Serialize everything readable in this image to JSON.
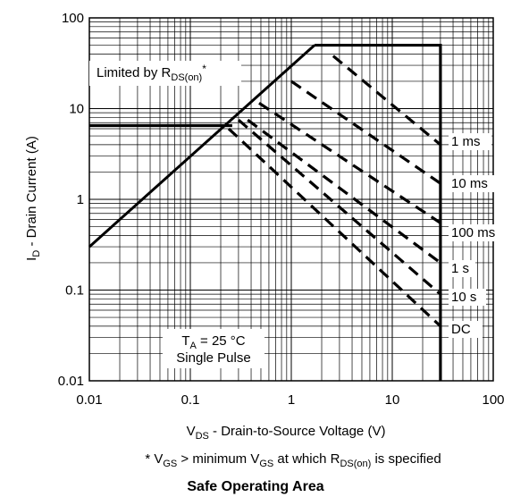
{
  "chart_data": {
    "type": "line",
    "title": "Safe Operating Area",
    "xscale": "log",
    "yscale": "log",
    "xlim": [
      0.01,
      100
    ],
    "ylim": [
      0.01,
      100
    ],
    "grid": "on",
    "x_tick_labels": [
      "0.01",
      "0.1",
      "1",
      "10",
      "100"
    ],
    "y_tick_labels": [
      "100",
      "10",
      "1",
      "0.1",
      "0.01"
    ],
    "x_ticks": [
      0.01,
      0.1,
      1,
      10,
      100
    ],
    "y_ticks": [
      100,
      10,
      1,
      0.1,
      0.01
    ],
    "xlabel": {
      "main": "V",
      "sub": "DS",
      "rest": " - Drain-to-Source Voltage (V)"
    },
    "ylabel": {
      "main": "I",
      "sub": "D",
      "rest": " - Drain Current (A)"
    },
    "footnote": {
      "p1": "* V",
      "s1": "GS",
      "p2": " > minimum V",
      "s2": "GS",
      "p3": " at which R",
      "s3": "DS(on)",
      "p4": " is specified"
    },
    "annotations": {
      "limited": {
        "p1": "Limited by R",
        "s1": "DS(on)",
        "p2": "*"
      },
      "ta": {
        "p1": "T",
        "s1": "A",
        "p2": " = 25 °C"
      },
      "pulse": "Single Pulse"
    },
    "limits": {
      "max_current_A": 50,
      "max_voltage_V": 30,
      "continuous_current_A": 6.5,
      "rdson_line": [
        {
          "x": 0.01,
          "y": 0.3
        },
        {
          "x": 1.7,
          "y": 50
        }
      ]
    },
    "series": [
      {
        "name": "1 ms",
        "style": "dashed",
        "points": [
          {
            "x": 2.6,
            "y": 38
          },
          {
            "x": 30,
            "y": 4
          }
        ]
      },
      {
        "name": "10 ms",
        "style": "dashed",
        "points": [
          {
            "x": 1.0,
            "y": 20
          },
          {
            "x": 30,
            "y": 1.5
          }
        ]
      },
      {
        "name": "100 ms",
        "style": "dashed",
        "points": [
          {
            "x": 0.48,
            "y": 11.5
          },
          {
            "x": 30,
            "y": 0.55
          }
        ]
      },
      {
        "name": "1 s",
        "style": "dashed",
        "points": [
          {
            "x": 0.37,
            "y": 7.5
          },
          {
            "x": 30,
            "y": 0.2
          }
        ]
      },
      {
        "name": "10 s",
        "style": "dashed",
        "points": [
          {
            "x": 0.3,
            "y": 7.5
          },
          {
            "x": 30,
            "y": 0.09
          }
        ]
      },
      {
        "name": "DC",
        "style": "dashed",
        "points": [
          {
            "x": 0.24,
            "y": 6.0
          },
          {
            "x": 30,
            "y": 0.04
          }
        ]
      }
    ]
  }
}
